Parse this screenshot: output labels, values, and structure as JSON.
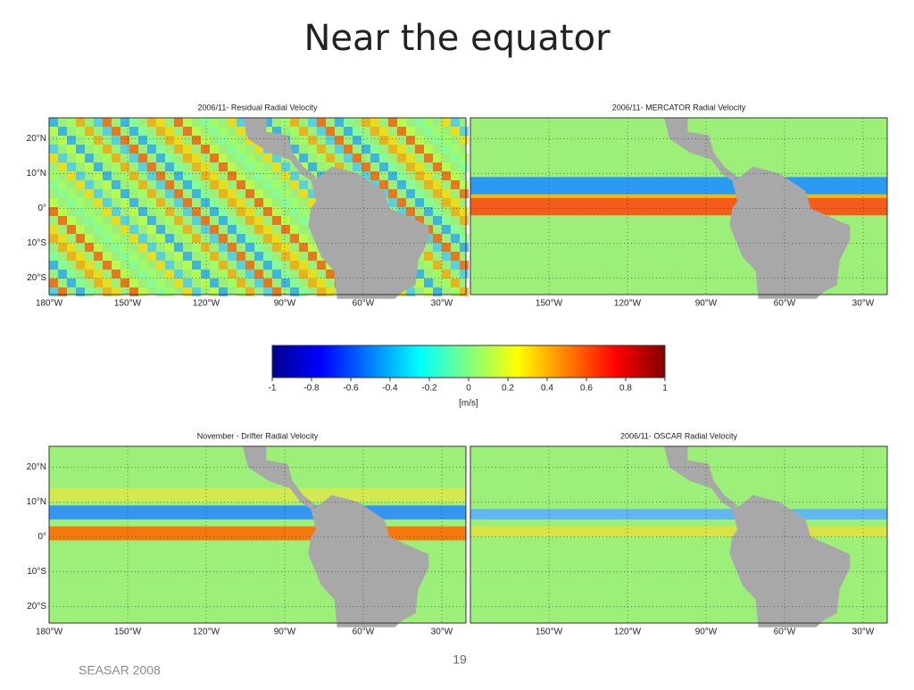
{
  "title": "Near the equator",
  "panels": [
    {
      "title": "2006/11- Residual Radial Velocity",
      "lat_labels": [
        "20°N",
        "10°N",
        "0°",
        "10°S",
        "20°S"
      ],
      "lon_labels": [
        "180°W",
        "150°W",
        "120°W",
        "90°W",
        "60°W",
        "30°W"
      ]
    },
    {
      "title": "2006/11- MERCATOR Radial Velocity",
      "lat_labels": [],
      "lon_labels": [
        "150°W",
        "120°W",
        "90°W",
        "60°W",
        "30°W"
      ]
    },
    {
      "title": "November - Drifter Radial Velocity",
      "lat_labels": [
        "20°N",
        "10°N",
        "0°",
        "10°S",
        "20°S"
      ],
      "lon_labels": [
        "180°W",
        "150°W",
        "120°W",
        "90°W",
        "60°W",
        "30°W"
      ]
    },
    {
      "title": "2006/11- OSCAR Radial Velocity",
      "lat_labels": [],
      "lon_labels": [
        "150°W",
        "120°W",
        "90°W",
        "60°W",
        "30°W"
      ]
    }
  ],
  "colorbar": {
    "lim": [
      -1,
      1
    ],
    "ticks": [
      -1,
      -0.8,
      -0.6,
      -0.4,
      -0.2,
      0,
      0.2,
      0.4,
      0.6,
      0.8,
      1
    ],
    "label": "[m/s]"
  },
  "footer": {
    "left": "SEASAR 2008",
    "page": "19"
  }
}
